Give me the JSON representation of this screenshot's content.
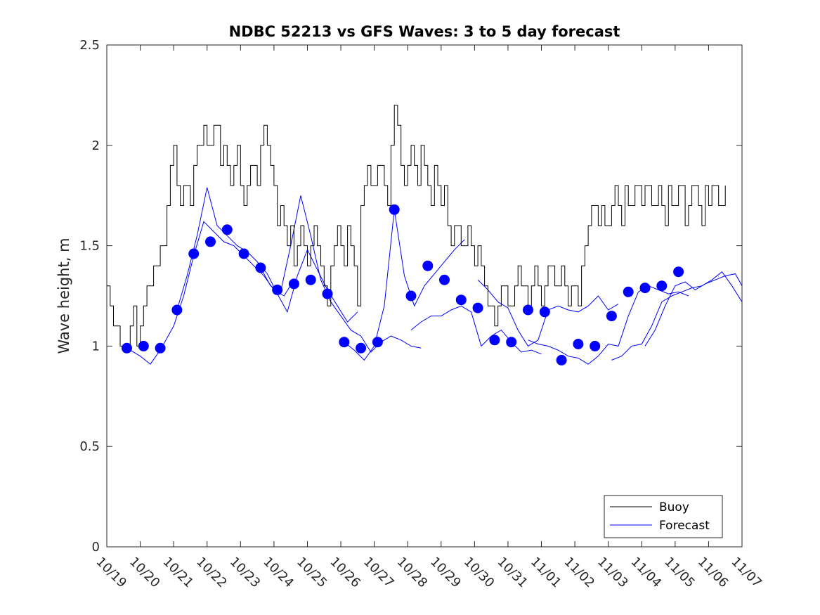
{
  "chart_data": {
    "type": "line",
    "title": "NDBC 52213 vs GFS Waves: 3 to 5 day forecast",
    "xlabel": "",
    "ylabel": "Wave height, m",
    "xlim": [
      0,
      19
    ],
    "ylim": [
      0,
      2.5
    ],
    "x_tick_labels": [
      "10/19",
      "10/20",
      "10/21",
      "10/22",
      "10/23",
      "10/24",
      "10/25",
      "10/26",
      "10/27",
      "10/28",
      "10/29",
      "10/30",
      "10/31",
      "11/01",
      "11/02",
      "11/03",
      "11/04",
      "11/05",
      "11/06",
      "11/07"
    ],
    "y_ticks": [
      0,
      0.5,
      1,
      1.5,
      2,
      2.5
    ],
    "y_tick_labels": [
      "0",
      "0.5",
      "1",
      "1.5",
      "2",
      "2.5"
    ],
    "legend": {
      "position": "bottom-right",
      "entries": [
        "Buoy",
        "Forecast"
      ]
    },
    "colors": {
      "buoy": "#000000",
      "forecast": "#0000ff"
    },
    "series": [
      {
        "name": "Buoy",
        "x": [
          0,
          0.1,
          0.2,
          0.3,
          0.4,
          0.5,
          0.6,
          0.7,
          0.8,
          0.9,
          1.0,
          1.1,
          1.2,
          1.3,
          1.4,
          1.5,
          1.6,
          1.7,
          1.8,
          1.9,
          2.0,
          2.1,
          2.2,
          2.3,
          2.4,
          2.5,
          2.6,
          2.7,
          2.8,
          2.9,
          3.0,
          3.1,
          3.2,
          3.3,
          3.4,
          3.5,
          3.6,
          3.7,
          3.8,
          3.9,
          4.0,
          4.1,
          4.2,
          4.3,
          4.4,
          4.5,
          4.6,
          4.7,
          4.8,
          4.9,
          5.0,
          5.1,
          5.2,
          5.3,
          5.4,
          5.5,
          5.6,
          5.7,
          5.8,
          5.9,
          6.0,
          6.1,
          6.2,
          6.3,
          6.4,
          6.5,
          6.6,
          6.7,
          6.8,
          6.9,
          7.0,
          7.1,
          7.2,
          7.3,
          7.4,
          7.5,
          7.6,
          7.7,
          7.8,
          7.9,
          8.0,
          8.1,
          8.2,
          8.3,
          8.4,
          8.5,
          8.6,
          8.7,
          8.8,
          8.9,
          9.0,
          9.1,
          9.2,
          9.3,
          9.4,
          9.5,
          9.6,
          9.7,
          9.8,
          9.9,
          10.0,
          10.1,
          10.2,
          10.3,
          10.4,
          10.5,
          10.6,
          10.7,
          10.8,
          10.9,
          11.0,
          11.1,
          11.2,
          11.3,
          11.4,
          11.5,
          11.6,
          11.7,
          11.8,
          11.9,
          12.0,
          12.1,
          12.2,
          12.3,
          12.4,
          12.5,
          12.6,
          12.7,
          12.8,
          12.9,
          13.0,
          13.1,
          13.2,
          13.3,
          13.4,
          13.5,
          13.6,
          13.7,
          13.8,
          13.9,
          14.0,
          14.1,
          14.2,
          14.3,
          14.4,
          14.5,
          14.6,
          14.7,
          14.8,
          14.9,
          15.0,
          15.1,
          15.2,
          15.3,
          15.4,
          15.5,
          15.6,
          15.7,
          15.8,
          15.9,
          16.0,
          16.1,
          16.2,
          16.3,
          16.4,
          16.5,
          16.6,
          16.7,
          16.8,
          16.9,
          17.0,
          17.1,
          17.2,
          17.3,
          17.4,
          17.5,
          17.6,
          17.7,
          17.8,
          17.9,
          18.0,
          18.1,
          18.2,
          18.3,
          18.4,
          18.5
        ],
        "values": [
          1.3,
          1.2,
          1.1,
          1.1,
          1.0,
          1.0,
          1.0,
          1.1,
          1.2,
          1.0,
          1.1,
          1.2,
          1.3,
          1.3,
          1.4,
          1.4,
          1.5,
          1.5,
          1.7,
          1.9,
          2.0,
          1.8,
          1.7,
          1.8,
          1.8,
          1.7,
          1.9,
          2.0,
          2.0,
          2.1,
          2.0,
          2.0,
          2.1,
          2.1,
          1.9,
          2.0,
          1.9,
          1.8,
          1.9,
          2.0,
          1.8,
          1.7,
          1.8,
          1.9,
          1.9,
          1.8,
          2.0,
          2.1,
          2.0,
          1.9,
          1.8,
          1.6,
          1.7,
          1.6,
          1.5,
          1.6,
          1.4,
          1.5,
          1.6,
          1.5,
          1.4,
          1.5,
          1.6,
          1.5,
          1.4,
          1.3,
          1.2,
          1.4,
          1.5,
          1.6,
          1.5,
          1.4,
          1.6,
          1.5,
          1.4,
          1.2,
          1.7,
          1.8,
          1.9,
          1.8,
          1.8,
          1.9,
          1.9,
          1.8,
          1.7,
          2.0,
          2.2,
          2.1,
          1.9,
          1.8,
          1.9,
          2.0,
          1.9,
          1.8,
          2.0,
          1.9,
          1.8,
          1.7,
          1.9,
          1.8,
          1.7,
          1.8,
          1.6,
          1.5,
          1.6,
          1.6,
          1.5,
          1.5,
          1.6,
          1.5,
          1.4,
          1.5,
          1.4,
          1.3,
          1.2,
          1.2,
          1.1,
          1.2,
          1.3,
          1.3,
          1.2,
          1.2,
          1.3,
          1.4,
          1.3,
          1.3,
          1.2,
          1.3,
          1.4,
          1.3,
          1.2,
          1.3,
          1.4,
          1.4,
          1.3,
          1.3,
          1.4,
          1.3,
          1.2,
          1.3,
          1.3,
          1.2,
          1.4,
          1.5,
          1.6,
          1.7,
          1.7,
          1.6,
          1.7,
          1.6,
          1.6,
          1.7,
          1.8,
          1.7,
          1.6,
          1.8,
          1.7,
          1.7,
          1.8,
          1.8,
          1.7,
          1.8,
          1.8,
          1.7,
          1.7,
          1.8,
          1.7,
          1.6,
          1.8,
          1.7,
          1.7,
          1.8,
          1.8,
          1.6,
          1.7,
          1.8,
          1.8,
          1.7,
          1.6,
          1.8,
          1.7,
          1.8,
          1.8,
          1.7,
          1.7,
          1.8
        ]
      },
      {
        "name": "Forecast",
        "markers": {
          "x": [
            0.6,
            1.1,
            1.6,
            2.1,
            2.6,
            3.1,
            3.6,
            4.1,
            4.6,
            5.1,
            5.6,
            6.1,
            6.6,
            7.1,
            7.6,
            8.1,
            8.6,
            9.1,
            9.6,
            10.1,
            10.6,
            11.1,
            11.6,
            12.1,
            12.6,
            13.1,
            13.6,
            14.1,
            14.6,
            15.1,
            15.6,
            16.1,
            16.6,
            17.1,
            17.6,
            18.1,
            18.6
          ],
          "values": [
            0.99,
            1.0,
            0.99,
            1.18,
            1.46,
            1.52,
            1.58,
            1.46,
            1.39,
            1.28,
            1.31,
            1.33,
            1.26,
            1.02,
            0.99,
            1.02,
            1.68,
            1.25,
            1.4,
            1.33,
            1.23,
            1.19,
            1.03,
            1.02,
            1.18,
            1.17,
            0.93,
            1.01,
            1.0,
            1.15,
            1.27,
            1.29,
            1.3,
            1.37,
            null,
            null,
            null
          ]
        },
        "runs": [
          {
            "x": [
              0.6,
              1.0,
              1.3,
              1.6,
              2.0,
              2.3,
              2.6,
              2.9,
              3.2,
              3.5,
              3.8,
              4.1,
              4.4,
              4.7,
              5.0,
              5.3,
              5.6
            ],
            "values": [
              0.99,
              0.95,
              0.91,
              0.98,
              1.1,
              1.25,
              1.45,
              1.62,
              1.57,
              1.52,
              1.5,
              1.45,
              1.4,
              1.35,
              1.28,
              1.25,
              1.33
            ]
          },
          {
            "x": [
              2.1,
              2.4,
              2.7,
              3.0,
              3.3,
              3.6,
              3.9,
              4.2,
              4.5,
              4.8,
              5.1,
              5.4,
              5.7,
              6.0,
              6.3,
              6.6,
              6.9,
              7.2,
              7.5
            ],
            "values": [
              1.18,
              1.35,
              1.55,
              1.79,
              1.6,
              1.55,
              1.5,
              1.47,
              1.42,
              1.36,
              1.26,
              1.17,
              1.35,
              1.48,
              1.38,
              1.28,
              1.2,
              1.12,
              1.17
            ]
          },
          {
            "x": [
              4.6,
              4.9,
              5.2,
              5.5,
              5.8,
              6.1,
              6.4,
              6.7,
              7.0,
              7.3,
              7.6,
              7.9,
              8.2,
              8.5,
              8.8,
              9.1,
              9.4
            ],
            "values": [
              1.39,
              1.3,
              1.27,
              1.5,
              1.75,
              1.55,
              1.33,
              1.22,
              1.15,
              1.08,
              1.05,
              0.97,
              1.02,
              1.05,
              1.03,
              1.0,
              0.99
            ]
          },
          {
            "x": [
              7.1,
              7.4,
              7.7,
              8.0,
              8.3,
              8.6,
              8.9,
              9.2,
              9.5,
              9.8,
              10.1,
              10.4,
              10.7
            ],
            "values": [
              1.02,
              0.98,
              0.93,
              1.0,
              1.2,
              1.68,
              1.35,
              1.2,
              1.3,
              1.36,
              1.42,
              1.48,
              1.53
            ]
          },
          {
            "x": [
              9.1,
              9.4,
              9.7,
              10.0,
              10.3,
              10.6,
              10.9,
              11.2,
              11.5,
              11.8,
              12.1,
              12.4,
              12.7,
              13.0
            ],
            "values": [
              1.08,
              1.12,
              1.15,
              1.15,
              1.18,
              1.2,
              1.17,
              1.0,
              1.05,
              1.08,
              1.02,
              0.97,
              0.98,
              0.96
            ]
          },
          {
            "x": [
              11.1,
              11.4,
              11.7,
              12.0,
              12.3,
              12.6,
              12.9,
              13.2,
              13.5,
              13.8,
              14.1,
              14.4,
              14.7,
              15.0,
              15.3
            ],
            "values": [
              1.33,
              1.28,
              1.22,
              1.19,
              1.08,
              1.0,
              1.03,
              1.18,
              1.2,
              1.18,
              1.17,
              1.2,
              1.25,
              1.18,
              1.21
            ]
          },
          {
            "x": [
              12.6,
              12.9,
              13.2,
              13.5,
              13.8,
              14.1,
              14.4,
              14.7,
              15.0,
              15.3,
              15.6,
              15.9,
              16.2,
              16.5,
              16.8,
              17.1,
              17.4
            ],
            "values": [
              1.03,
              1.01,
              1.0,
              0.98,
              0.95,
              0.94,
              0.91,
              0.95,
              1.01,
              1.0,
              1.15,
              1.27,
              1.3,
              1.28,
              1.26,
              1.27,
              1.25
            ]
          },
          {
            "x": [
              15.1,
              15.4,
              15.7,
              16.0,
              16.3,
              16.6,
              16.9,
              17.2,
              17.5,
              17.8,
              18.1,
              18.4,
              18.7,
              19.0
            ],
            "values": [
              0.93,
              0.95,
              1.0,
              1.01,
              1.1,
              1.22,
              1.25,
              1.27,
              1.29,
              1.3,
              1.33,
              1.37,
              1.3,
              1.22
            ]
          },
          {
            "x": [
              16.1,
              16.4,
              16.7,
              17.0,
              17.3,
              17.6,
              17.9,
              18.2,
              18.5,
              18.8,
              19.0
            ],
            "values": [
              1.0,
              1.08,
              1.2,
              1.3,
              1.32,
              1.28,
              1.31,
              1.33,
              1.35,
              1.36,
              1.3
            ]
          }
        ]
      }
    ]
  }
}
